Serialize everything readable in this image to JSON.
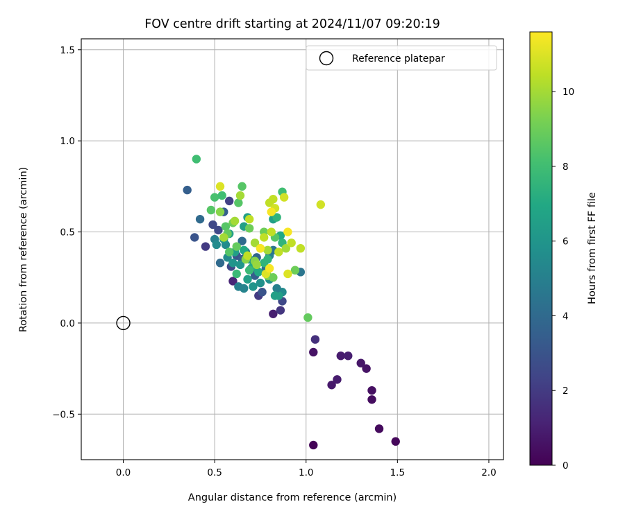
{
  "chart_data": {
    "type": "scatter",
    "title": "FOV centre drift starting at 2024/11/07 09:20:19",
    "xlabel": "Angular distance from reference (arcmin)",
    "ylabel": "Rotation from reference (arcmin)",
    "xlim": [
      -0.23,
      2.08
    ],
    "ylim": [
      -0.75,
      1.56
    ],
    "xticks": [
      0.0,
      0.5,
      1.0,
      1.5,
      2.0
    ],
    "xtick_labels": [
      "0.0",
      "0.5",
      "1.0",
      "1.5",
      "2.0"
    ],
    "yticks": [
      -0.5,
      0.0,
      0.5,
      1.0,
      1.5
    ],
    "ytick_labels": [
      "−0.5",
      "0.0",
      "0.5",
      "1.0",
      "1.5"
    ],
    "grid": true,
    "legend": {
      "placement": "top-right",
      "entries": [
        "Reference platepar"
      ]
    },
    "colorbar": {
      "label": "Hours from first FF file",
      "range": [
        0,
        11.6
      ],
      "ticks": [
        0,
        2,
        4,
        6,
        8,
        10
      ],
      "tick_labels": [
        "0",
        "2",
        "4",
        "6",
        "8",
        "10"
      ],
      "colormap": "viridis"
    },
    "reference_point": {
      "x": 0.0,
      "y": 0.0
    },
    "points": [
      {
        "x": 1.04,
        "y": -0.67,
        "h": 0.1
      },
      {
        "x": 1.49,
        "y": -0.65,
        "h": 0.2
      },
      {
        "x": 1.4,
        "y": -0.58,
        "h": 0.3
      },
      {
        "x": 1.36,
        "y": -0.42,
        "h": 0.4
      },
      {
        "x": 1.36,
        "y": -0.37,
        "h": 0.5
      },
      {
        "x": 1.14,
        "y": -0.34,
        "h": 0.8
      },
      {
        "x": 1.17,
        "y": -0.31,
        "h": 0.9
      },
      {
        "x": 1.33,
        "y": -0.25,
        "h": 0.6
      },
      {
        "x": 1.3,
        "y": -0.22,
        "h": 0.7
      },
      {
        "x": 1.19,
        "y": -0.18,
        "h": 0.9
      },
      {
        "x": 1.23,
        "y": -0.18,
        "h": 1.0
      },
      {
        "x": 1.04,
        "y": -0.16,
        "h": 0.6
      },
      {
        "x": 1.05,
        "y": -0.09,
        "h": 1.6
      },
      {
        "x": 0.82,
        "y": 0.05,
        "h": 1.0
      },
      {
        "x": 0.86,
        "y": 0.07,
        "h": 1.8
      },
      {
        "x": 0.6,
        "y": 0.23,
        "h": 1.2
      },
      {
        "x": 0.74,
        "y": 0.15,
        "h": 2.0
      },
      {
        "x": 0.87,
        "y": 0.12,
        "h": 2.5
      },
      {
        "x": 0.87,
        "y": 0.17,
        "h": 5.5
      },
      {
        "x": 0.85,
        "y": 0.15,
        "h": 6.5
      },
      {
        "x": 0.84,
        "y": 0.19,
        "h": 5.0
      },
      {
        "x": 0.35,
        "y": 0.73,
        "h": 3.5
      },
      {
        "x": 0.39,
        "y": 0.47,
        "h": 3.0
      },
      {
        "x": 0.42,
        "y": 0.57,
        "h": 4.0
      },
      {
        "x": 0.45,
        "y": 0.42,
        "h": 2.0
      },
      {
        "x": 0.49,
        "y": 0.54,
        "h": 2.5
      },
      {
        "x": 0.52,
        "y": 0.51,
        "h": 2.5
      },
      {
        "x": 0.53,
        "y": 0.33,
        "h": 4.0
      },
      {
        "x": 0.55,
        "y": 0.61,
        "h": 3.5
      },
      {
        "x": 0.58,
        "y": 0.67,
        "h": 2.2
      },
      {
        "x": 0.59,
        "y": 0.31,
        "h": 2.5
      },
      {
        "x": 0.62,
        "y": 0.37,
        "h": 3.0
      },
      {
        "x": 0.65,
        "y": 0.35,
        "h": 3.5
      },
      {
        "x": 0.65,
        "y": 0.45,
        "h": 4.0
      },
      {
        "x": 0.67,
        "y": 0.39,
        "h": 4.5
      },
      {
        "x": 0.7,
        "y": 0.3,
        "h": 4.0
      },
      {
        "x": 0.72,
        "y": 0.26,
        "h": 3.5
      },
      {
        "x": 0.73,
        "y": 0.36,
        "h": 3.8
      },
      {
        "x": 0.76,
        "y": 0.17,
        "h": 3.0
      },
      {
        "x": 0.78,
        "y": 0.3,
        "h": 4.2
      },
      {
        "x": 0.8,
        "y": 0.37,
        "h": 5.0
      },
      {
        "x": 0.82,
        "y": 0.4,
        "h": 4.5
      },
      {
        "x": 0.97,
        "y": 0.28,
        "h": 4.5
      },
      {
        "x": 0.56,
        "y": 0.43,
        "h": 5.5
      },
      {
        "x": 0.57,
        "y": 0.36,
        "h": 5.5
      },
      {
        "x": 0.6,
        "y": 0.33,
        "h": 6.0
      },
      {
        "x": 0.63,
        "y": 0.2,
        "h": 5.0
      },
      {
        "x": 0.66,
        "y": 0.19,
        "h": 5.2
      },
      {
        "x": 0.68,
        "y": 0.24,
        "h": 6.5
      },
      {
        "x": 0.71,
        "y": 0.2,
        "h": 6.0
      },
      {
        "x": 0.75,
        "y": 0.22,
        "h": 5.8
      },
      {
        "x": 0.8,
        "y": 0.24,
        "h": 5.8
      },
      {
        "x": 0.83,
        "y": 0.15,
        "h": 6.5
      },
      {
        "x": 0.5,
        "y": 0.46,
        "h": 5.0
      },
      {
        "x": 0.51,
        "y": 0.43,
        "h": 5.5
      },
      {
        "x": 0.55,
        "y": 0.46,
        "h": 6.0
      },
      {
        "x": 0.58,
        "y": 0.49,
        "h": 6.5
      },
      {
        "x": 0.61,
        "y": 0.39,
        "h": 6.5
      },
      {
        "x": 0.64,
        "y": 0.32,
        "h": 6.0
      },
      {
        "x": 0.66,
        "y": 0.4,
        "h": 7.0
      },
      {
        "x": 0.69,
        "y": 0.35,
        "h": 6.2
      },
      {
        "x": 0.71,
        "y": 0.31,
        "h": 7.0
      },
      {
        "x": 0.74,
        "y": 0.28,
        "h": 7.0
      },
      {
        "x": 0.77,
        "y": 0.33,
        "h": 7.5
      },
      {
        "x": 0.79,
        "y": 0.35,
        "h": 7.5
      },
      {
        "x": 0.66,
        "y": 0.53,
        "h": 6.5
      },
      {
        "x": 0.68,
        "y": 0.58,
        "h": 6.5
      },
      {
        "x": 0.82,
        "y": 0.57,
        "h": 6.5
      },
      {
        "x": 0.84,
        "y": 0.58,
        "h": 7.5
      },
      {
        "x": 0.86,
        "y": 0.48,
        "h": 7.0
      },
      {
        "x": 0.87,
        "y": 0.44,
        "h": 7.5
      },
      {
        "x": 0.87,
        "y": 0.72,
        "h": 8.0
      },
      {
        "x": 0.62,
        "y": 0.27,
        "h": 7.8
      },
      {
        "x": 0.69,
        "y": 0.29,
        "h": 7.8
      },
      {
        "x": 0.4,
        "y": 0.9,
        "h": 8.0
      },
      {
        "x": 0.48,
        "y": 0.62,
        "h": 8.5
      },
      {
        "x": 0.5,
        "y": 0.69,
        "h": 8.2
      },
      {
        "x": 0.54,
        "y": 0.7,
        "h": 8.0
      },
      {
        "x": 0.56,
        "y": 0.53,
        "h": 8.5
      },
      {
        "x": 0.57,
        "y": 0.49,
        "h": 8.8
      },
      {
        "x": 0.58,
        "y": 0.39,
        "h": 8.5
      },
      {
        "x": 0.6,
        "y": 0.55,
        "h": 9.0
      },
      {
        "x": 0.62,
        "y": 0.42,
        "h": 8.8
      },
      {
        "x": 0.63,
        "y": 0.66,
        "h": 8.5
      },
      {
        "x": 0.65,
        "y": 0.75,
        "h": 8.5
      },
      {
        "x": 0.67,
        "y": 0.35,
        "h": 9.5
      },
      {
        "x": 0.69,
        "y": 0.52,
        "h": 9.0
      },
      {
        "x": 0.72,
        "y": 0.34,
        "h": 9.5
      },
      {
        "x": 0.73,
        "y": 0.32,
        "h": 9.8
      },
      {
        "x": 0.77,
        "y": 0.5,
        "h": 9.0
      },
      {
        "x": 0.79,
        "y": 0.26,
        "h": 9.5
      },
      {
        "x": 0.82,
        "y": 0.25,
        "h": 9.0
      },
      {
        "x": 0.83,
        "y": 0.47,
        "h": 8.5
      },
      {
        "x": 1.01,
        "y": 0.03,
        "h": 8.8
      },
      {
        "x": 0.94,
        "y": 0.29,
        "h": 9.0
      },
      {
        "x": 0.53,
        "y": 0.61,
        "h": 9.5
      },
      {
        "x": 0.55,
        "y": 0.47,
        "h": 10.0
      },
      {
        "x": 0.61,
        "y": 0.56,
        "h": 10.0
      },
      {
        "x": 0.64,
        "y": 0.7,
        "h": 10.0
      },
      {
        "x": 0.68,
        "y": 0.37,
        "h": 10.5
      },
      {
        "x": 0.69,
        "y": 0.57,
        "h": 10.5
      },
      {
        "x": 0.72,
        "y": 0.44,
        "h": 10.0
      },
      {
        "x": 0.75,
        "y": 0.41,
        "h": 10.5
      },
      {
        "x": 0.77,
        "y": 0.47,
        "h": 10.5
      },
      {
        "x": 0.78,
        "y": 0.27,
        "h": 11.0
      },
      {
        "x": 0.79,
        "y": 0.4,
        "h": 10.0
      },
      {
        "x": 0.8,
        "y": 0.66,
        "h": 10.5
      },
      {
        "x": 0.81,
        "y": 0.5,
        "h": 10.5
      },
      {
        "x": 0.82,
        "y": 0.68,
        "h": 10.5
      },
      {
        "x": 0.83,
        "y": 0.63,
        "h": 10.8
      },
      {
        "x": 0.85,
        "y": 0.39,
        "h": 10.5
      },
      {
        "x": 0.88,
        "y": 0.69,
        "h": 10.8
      },
      {
        "x": 0.89,
        "y": 0.41,
        "h": 10.0
      },
      {
        "x": 0.9,
        "y": 0.27,
        "h": 11.0
      },
      {
        "x": 0.92,
        "y": 0.44,
        "h": 10.5
      },
      {
        "x": 0.97,
        "y": 0.41,
        "h": 10.5
      },
      {
        "x": 1.08,
        "y": 0.65,
        "h": 10.8
      },
      {
        "x": 0.53,
        "y": 0.75,
        "h": 11.0
      },
      {
        "x": 0.75,
        "y": 0.41,
        "h": 11.5
      },
      {
        "x": 0.8,
        "y": 0.3,
        "h": 11.5
      },
      {
        "x": 0.81,
        "y": 0.61,
        "h": 11.5
      },
      {
        "x": 0.9,
        "y": 0.5,
        "h": 11.5
      }
    ]
  }
}
